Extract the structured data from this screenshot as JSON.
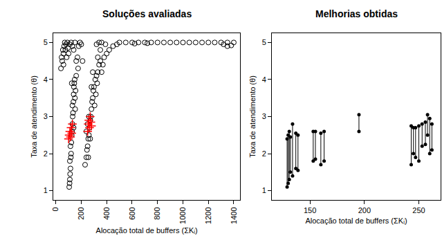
{
  "chart_data": [
    {
      "type": "scatter",
      "title": "Soluções avaliadas",
      "x_label": "Alocação total de buffers (ΣKᵢ)",
      "y_label": "Taxa de atendimento (θ)",
      "xlim": [
        -20,
        1450
      ],
      "xticks": [
        0,
        200,
        400,
        600,
        800,
        1000,
        1200,
        1400
      ],
      "ylim": [
        0.75,
        5.25
      ],
      "yticks": [
        1,
        2,
        3,
        4,
        5
      ],
      "grid": false,
      "series": [
        {
          "marker": "open_circle",
          "color": "#000000",
          "x": [
            105,
            108,
            110,
            112,
            115,
            110,
            118,
            120,
            115,
            122,
            125,
            128,
            130,
            132,
            135,
            130,
            138,
            140,
            142,
            145,
            148,
            150,
            152,
            155,
            160,
            125,
            140,
            40,
            45,
            50,
            55,
            60,
            65,
            70,
            75,
            80,
            85,
            90,
            95,
            100,
            110,
            120,
            130,
            140,
            150,
            160,
            170,
            180,
            190,
            200,
            210,
            175,
            60,
            230,
            240,
            245,
            250,
            255,
            260,
            265,
            270,
            275,
            280,
            285,
            290,
            295,
            300,
            310,
            320,
            330,
            340,
            350,
            305,
            315,
            325,
            260,
            270,
            250,
            280,
            290,
            240,
            255,
            380,
            400,
            420,
            450,
            480,
            360,
            370,
            330,
            350,
            390,
            320,
            340,
            360,
            500,
            550,
            600,
            650,
            700,
            750,
            800,
            850,
            900,
            950,
            1000,
            1050,
            1100,
            1150,
            1200,
            1250,
            1300,
            1350,
            1400,
            1350,
            1380,
            1320,
            620,
            720
          ],
          "values": [
            1.1,
            1.2,
            1.3,
            1.45,
            1.6,
            1.8,
            1.9,
            2.0,
            2.2,
            2.3,
            2.5,
            2.6,
            2.8,
            3.0,
            3.1,
            3.3,
            3.4,
            3.6,
            3.8,
            3.9,
            4.0,
            3.5,
            3.2,
            3.7,
            4.1,
            3.9,
            2.7,
            4.3,
            4.6,
            4.5,
            4.8,
            4.7,
            4.9,
            5.0,
            4.8,
            4.95,
            4.6,
            5.0,
            4.85,
            4.7,
            4.95,
            5.0,
            4.9,
            4.8,
            5.0,
            4.5,
            4.6,
            4.9,
            5.0,
            4.95,
            4.5,
            4.3,
            4.4,
            1.7,
            1.9,
            2.1,
            2.2,
            2.4,
            2.5,
            2.7,
            2.9,
            3.0,
            3.2,
            3.4,
            3.5,
            3.7,
            3.8,
            4.0,
            4.1,
            4.2,
            4.4,
            4.5,
            3.3,
            3.6,
            3.9,
            3.0,
            2.4,
            2.8,
            3.8,
            4.2,
            2.6,
            1.9,
            4.6,
            4.7,
            4.8,
            4.9,
            4.95,
            4.2,
            4.4,
            4.6,
            4.8,
            4.95,
            4.95,
            5.0,
            5.0,
            5.0,
            5.0,
            5.0,
            5.0,
            5.0,
            5.0,
            5.0,
            5.0,
            5.0,
            5.0,
            5.0,
            5.0,
            5.0,
            5.0,
            5.0,
            5.0,
            5.0,
            5.0,
            5.0,
            4.9,
            4.92,
            4.95,
            4.97,
            4.98
          ]
        },
        {
          "marker": "plus",
          "color": "#ff0000",
          "x": [
            100,
            105,
            110,
            115,
            120,
            125,
            130,
            250,
            255,
            260,
            265,
            270,
            275,
            280
          ],
          "values": [
            2.4,
            2.5,
            2.6,
            2.45,
            2.7,
            2.55,
            2.8,
            2.6,
            2.8,
            2.9,
            2.7,
            3.0,
            2.85,
            2.75
          ]
        }
      ]
    },
    {
      "type": "segments",
      "title": "Melhorias obtidas",
      "x_label": "Alocação total de buffers (ΣKᵢ)",
      "y_label": "Taxa de atendimento (θ)",
      "xlim": [
        115,
        270
      ],
      "xticks": [
        150,
        200,
        250
      ],
      "ylim": [
        0.75,
        5.25
      ],
      "yticks": [
        1,
        2,
        3,
        4,
        5
      ],
      "grid": false,
      "marker": "dot",
      "color": "#000000",
      "x": [
        129,
        130,
        131,
        132,
        134,
        137,
        139,
        153,
        155,
        160,
        163,
        195,
        243,
        245,
        247,
        250,
        253,
        256,
        258,
        260,
        262
      ],
      "y_start": [
        1.1,
        1.2,
        1.3,
        1.5,
        1.4,
        1.6,
        1.55,
        1.8,
        1.85,
        1.7,
        1.8,
        2.6,
        1.7,
        2.0,
        1.9,
        1.8,
        2.2,
        2.25,
        2.5,
        2.0,
        2.1
      ],
      "y_end": [
        2.4,
        2.5,
        2.6,
        2.45,
        2.8,
        2.55,
        2.5,
        2.6,
        2.6,
        2.55,
        2.6,
        3.05,
        2.75,
        2.7,
        2.7,
        2.75,
        2.8,
        2.85,
        3.05,
        2.95,
        2.8
      ]
    }
  ]
}
